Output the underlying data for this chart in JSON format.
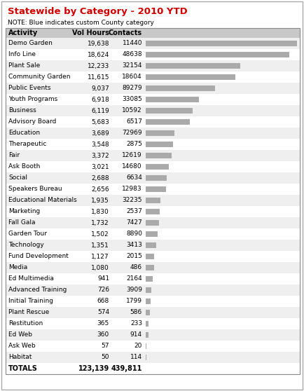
{
  "title": "Statewide by Category - 2010 YTD",
  "note": "NOTE: Blue indicates custom County category",
  "columns": [
    "Activity",
    "Vol Hours",
    "Contacts"
  ],
  "rows": [
    [
      "Demo Garden",
      "19,638",
      "11440"
    ],
    [
      "Info Line",
      "18,624",
      "48638"
    ],
    [
      "Plant Sale",
      "12,233",
      "32154"
    ],
    [
      "Community Garden",
      "11,615",
      "18604"
    ],
    [
      "Public Events",
      "9,037",
      "89279"
    ],
    [
      "Youth Programs",
      "6,918",
      "33085"
    ],
    [
      "Business",
      "6,119",
      "10592"
    ],
    [
      "Advisory Board",
      "5,683",
      "6517"
    ],
    [
      "Education",
      "3,689",
      "72969"
    ],
    [
      "Therapeutic",
      "3,548",
      "2875"
    ],
    [
      "Fair",
      "3,372",
      "12619"
    ],
    [
      "Ask Booth",
      "3,021",
      "14680"
    ],
    [
      "Social",
      "2,688",
      "6634"
    ],
    [
      "Speakers Bureau",
      "2,656",
      "12983"
    ],
    [
      "Educational Materials",
      "1,935",
      "32235"
    ],
    [
      "Marketing",
      "1,830",
      "2537"
    ],
    [
      "Fall Gala",
      "1,732",
      "7427"
    ],
    [
      "Garden Tour",
      "1,502",
      "8890"
    ],
    [
      "Technology",
      "1,351",
      "3413"
    ],
    [
      "Fund Development",
      "1,127",
      "2015"
    ],
    [
      "Media",
      "1,080",
      "486"
    ],
    [
      "Ed Multimedia",
      "941",
      "2164"
    ],
    [
      "Advanced Training",
      "726",
      "3909"
    ],
    [
      "Initial Training",
      "668",
      "1799"
    ],
    [
      "Plant Rescue",
      "574",
      "586"
    ],
    [
      "Restitution",
      "365",
      "233"
    ],
    [
      "Ed Web",
      "360",
      "914"
    ],
    [
      "Ask Web",
      "57",
      "20"
    ],
    [
      "Habitat",
      "50",
      "114"
    ]
  ],
  "totals": [
    "TOTALS",
    "123,139",
    "439,811"
  ],
  "vol_hours_values": [
    19638,
    18624,
    12233,
    11615,
    9037,
    6918,
    6119,
    5683,
    3689,
    3548,
    3372,
    3021,
    2688,
    2656,
    1935,
    1830,
    1732,
    1502,
    1351,
    1127,
    1080,
    941,
    726,
    668,
    574,
    365,
    360,
    57,
    50
  ],
  "max_vol_hours": 19638,
  "bar_color": "#aaaaaa",
  "title_color": "#cc0000",
  "header_bg": "#c8c8c8",
  "row_bg_odd": "#efefef",
  "row_bg_even": "#ffffff",
  "outer_border_color": "#888888",
  "title_fontsize": 9.5,
  "note_fontsize": 6.5,
  "header_fontsize": 7,
  "row_fontsize": 6.5,
  "totals_fontsize": 7
}
